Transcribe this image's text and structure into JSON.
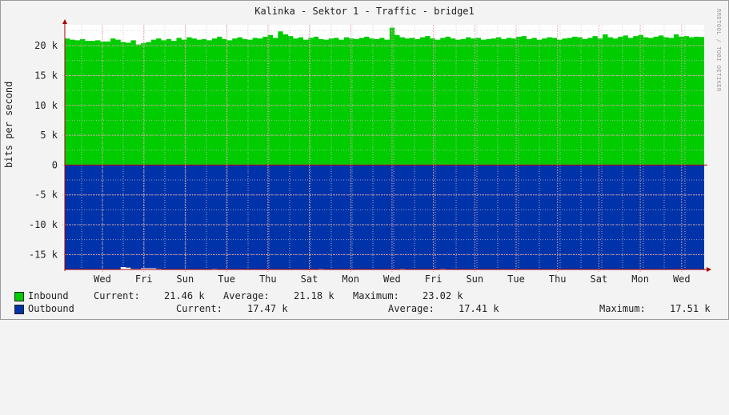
{
  "title": "Kalinka - Sektor 1 - Traffic - bridge1",
  "watermark": "RRDTOOL / TOBI OETIKER",
  "colors": {
    "inbound": "#00cc00",
    "outbound": "#0033aa",
    "grid_major": "#e0a0a0",
    "grid_minor": "#c8c8c8",
    "axis": "#aa0000"
  },
  "chart_data": {
    "type": "area",
    "ylabel": "bits per second",
    "ylim": [
      -17500,
      23500
    ],
    "yticks": [
      {
        "value": 20000,
        "label": "20 k"
      },
      {
        "value": 15000,
        "label": "15 k"
      },
      {
        "value": 10000,
        "label": "10 k"
      },
      {
        "value": 5000,
        "label": "5 k"
      },
      {
        "value": 0,
        "label": "0"
      },
      {
        "value": -5000,
        "label": "-5 k"
      },
      {
        "value": -10000,
        "label": "-10 k"
      },
      {
        "value": -15000,
        "label": "-15 k"
      }
    ],
    "xticks": [
      "Wed",
      "Fri",
      "Sun",
      "Tue",
      "Thu",
      "Sat",
      "Mon",
      "Wed",
      "Fri",
      "Sun",
      "Tue",
      "Thu",
      "Sat",
      "Mon",
      "Wed"
    ],
    "grid": true,
    "series": [
      {
        "name": "Inbound",
        "direction": "positive",
        "values": [
          21200,
          21000,
          20900,
          21100,
          20800,
          20800,
          20900,
          20700,
          20700,
          21200,
          21000,
          20600,
          20500,
          20900,
          20200,
          20400,
          20600,
          21000,
          21200,
          20900,
          21100,
          20800,
          21300,
          21000,
          21400,
          21200,
          21000,
          21100,
          20900,
          21200,
          21500,
          21100,
          20900,
          21200,
          21400,
          21100,
          21000,
          21300,
          21200,
          21500,
          21800,
          21300,
          22400,
          21900,
          21600,
          21200,
          21400,
          21000,
          21300,
          21500,
          21100,
          21000,
          21200,
          21300,
          21000,
          21400,
          21200,
          21100,
          21300,
          21500,
          21200,
          21100,
          21300,
          21000,
          23020,
          21800,
          21400,
          21200,
          21300,
          21100,
          21400,
          21600,
          21200,
          21000,
          21300,
          21500,
          21200,
          21000,
          21100,
          21400,
          21200,
          21300,
          21000,
          21100,
          21200,
          21400,
          21100,
          21300,
          21200,
          21500,
          21600,
          21100,
          21300,
          21000,
          21200,
          21400,
          21300,
          21000,
          21200,
          21300,
          21500,
          21400,
          21100,
          21300,
          21600,
          21200,
          21900,
          21400,
          21200,
          21500,
          21700,
          21300,
          21600,
          21800,
          21400,
          21300,
          21500,
          21700,
          21400,
          21300,
          21900,
          21500,
          21600,
          21400,
          21500,
          21460
        ],
        "current": "21.46 k",
        "average": "21.18 k",
        "maximum": "23.02 k"
      },
      {
        "name": "Outbound",
        "direction": "negative",
        "values": [
          17500,
          17500,
          17500,
          17500,
          17500,
          17500,
          17500,
          17500,
          17500,
          17500,
          17500,
          17100,
          17200,
          17400,
          17400,
          17300,
          17300,
          17300,
          17400,
          17500,
          17500,
          17500,
          17500,
          17500,
          17500,
          17500,
          17500,
          17500,
          17500,
          17400,
          17500,
          17500,
          17500,
          17500,
          17500,
          17500,
          17500,
          17500,
          17500,
          17500,
          17500,
          17500,
          17500,
          17500,
          17500,
          17500,
          17500,
          17500,
          17500,
          17500,
          17400,
          17500,
          17500,
          17500,
          17500,
          17500,
          17500,
          17500,
          17500,
          17500,
          17500,
          17500,
          17500,
          17500,
          17500,
          17500,
          17400,
          17500,
          17500,
          17500,
          17500,
          17500,
          17500,
          17500,
          17400,
          17500,
          17500,
          17500,
          17500,
          17500,
          17500,
          17500,
          17500,
          17500,
          17500,
          17500,
          17500,
          17500,
          17500,
          17500,
          17500,
          17500,
          17500,
          17500,
          17500,
          17500,
          17500,
          17500,
          17500,
          17500,
          17500,
          17500,
          17500,
          17500,
          17500,
          17500,
          17500,
          17500,
          17500,
          17500,
          17500,
          17500,
          17500,
          17500,
          17500,
          17500,
          17500,
          17500,
          17500,
          17500,
          17500,
          17500,
          17500,
          17500,
          17500,
          17470
        ],
        "current": "17.47 k",
        "average": "17.41 k",
        "maximum": "17.51 k"
      }
    ]
  },
  "legend": {
    "inbound": {
      "name": "Inbound",
      "current_label": "Current:",
      "current": "21.46 k",
      "average_label": "Average:",
      "average": "21.18 k",
      "maximum_label": "Maximum:",
      "maximum": "23.02 k"
    },
    "outbound": {
      "name": "Outbound",
      "current_label": "Current:",
      "current": "17.47 k",
      "average_label": "Average:",
      "average": "17.41 k",
      "maximum_label": "Maximum:",
      "maximum": "17.51 k"
    }
  }
}
